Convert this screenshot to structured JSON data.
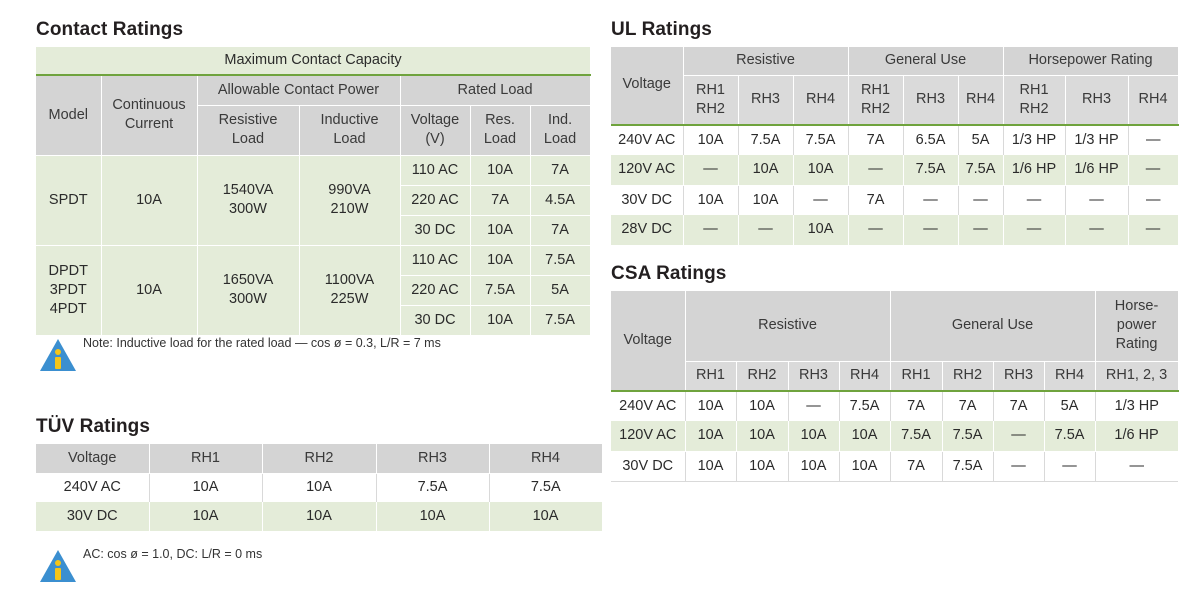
{
  "contact": {
    "title": "Contact Ratings",
    "top_header": "Maximum Contact Capacity",
    "h_model": "Model",
    "h_cont": "Continuous Current",
    "h_allow": "Allowable Contact Power",
    "h_rated": "Rated Load",
    "h_res": "Resistive Load",
    "h_ind": "Inductive Load",
    "h_voltage": "Voltage (V)",
    "h_resload": "Res. Load",
    "h_indload": "Ind. Load",
    "groups": [
      {
        "model": "SPDT",
        "current": "10A",
        "res": "1540VA\n300W",
        "ind": "990VA\n210W",
        "rows": [
          [
            "110 AC",
            "10A",
            "7A"
          ],
          [
            "220 AC",
            "7A",
            "4.5A"
          ],
          [
            "30 DC",
            "10A",
            "7A"
          ]
        ]
      },
      {
        "model": "DPDT\n3PDT\n4PDT",
        "current": "10A",
        "res": "1650VA\n300W",
        "ind": "1100VA\n225W",
        "rows": [
          [
            "110 AC",
            "10A",
            "7.5A"
          ],
          [
            "220 AC",
            "7.5A",
            "5A"
          ],
          [
            "30 DC",
            "10A",
            "7.5A"
          ]
        ]
      }
    ],
    "note": "Note: Inductive load for the rated load — cos ø = 0.3, L/R = 7 ms"
  },
  "tuv": {
    "title": "TÜV Ratings",
    "headers": [
      "Voltage",
      "RH1",
      "RH2",
      "RH3",
      "RH4"
    ],
    "rows": [
      [
        "240V AC",
        "10A",
        "10A",
        "7.5A",
        "7.5A"
      ],
      [
        "30V DC",
        "10A",
        "10A",
        "10A",
        "10A"
      ]
    ],
    "note": "AC: cos ø = 1.0, DC: L/R = 0 ms"
  },
  "ul": {
    "title": "UL Ratings",
    "h_voltage": "Voltage",
    "groups": [
      "Resistive",
      "General Use",
      "Horsepower Rating"
    ],
    "subheaders": [
      "RH1\nRH2",
      "RH3",
      "RH4",
      "RH1\nRH2",
      "RH3",
      "RH4",
      "RH1\nRH2",
      "RH3",
      "RH4"
    ],
    "rows": [
      [
        "240V AC",
        "10A",
        "7.5A",
        "7.5A",
        "7A",
        "6.5A",
        "5A",
        "1/3 HP",
        "1/3 HP",
        "—"
      ],
      [
        "120V AC",
        "—",
        "10A",
        "10A",
        "—",
        "7.5A",
        "7.5A",
        "1/6 HP",
        "1/6 HP",
        "—"
      ],
      [
        "30V DC",
        "10A",
        "10A",
        "—",
        "7A",
        "—",
        "—",
        "—",
        "—",
        "—"
      ],
      [
        "28V DC",
        "—",
        "—",
        "10A",
        "—",
        "—",
        "—",
        "—",
        "—",
        "—"
      ]
    ]
  },
  "csa": {
    "title": "CSA Ratings",
    "h_voltage": "Voltage",
    "groups": [
      "Resistive",
      "General Use",
      "Horse-\npower\nRating"
    ],
    "subheaders": [
      "RH1",
      "RH2",
      "RH3",
      "RH4",
      "RH1",
      "RH2",
      "RH3",
      "RH4",
      "RH1, 2, 3"
    ],
    "rows": [
      [
        "240V AC",
        "10A",
        "10A",
        "—",
        "7.5A",
        "7A",
        "7A",
        "7A",
        "5A",
        "1/3 HP"
      ],
      [
        "120V AC",
        "10A",
        "10A",
        "10A",
        "10A",
        "7.5A",
        "7.5A",
        "—",
        "7.5A",
        "1/6 HP"
      ],
      [
        "30V DC",
        "10A",
        "10A",
        "10A",
        "10A",
        "7A",
        "7.5A",
        "—",
        "—",
        "—"
      ]
    ]
  }
}
